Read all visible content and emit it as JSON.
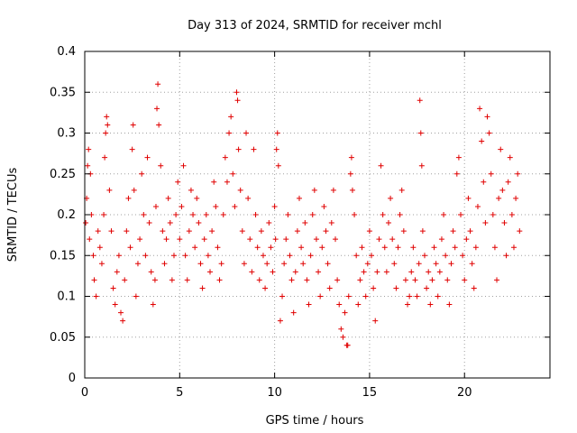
{
  "chart_data": {
    "type": "scatter",
    "title": "Day 313 of 2024, SRMTID for receiver mchl",
    "xlabel": "GPS time / hours",
    "ylabel": "SRMTID / TECUs",
    "xlim": [
      0,
      24.5
    ],
    "ylim": [
      0,
      0.4
    ],
    "xticks": [
      0,
      5,
      10,
      15,
      20
    ],
    "xtick_labels": [
      "0",
      "5",
      "10",
      "15",
      "20"
    ],
    "yticks": [
      0,
      0.05,
      0.1,
      0.15,
      0.2,
      0.25,
      0.3,
      0.35,
      0.4
    ],
    "ytick_labels": [
      "0",
      "0.05",
      "0.1",
      "0.15",
      "0.2",
      "0.25",
      "0.3",
      "0.35",
      "0.4"
    ],
    "grid": true,
    "marker": "+",
    "color": "#e00000",
    "x_data_range": [
      0,
      22.9
    ],
    "series": [
      {
        "name": "SRMTID",
        "points": [
          [
            0.05,
            0.19
          ],
          [
            0.1,
            0.22
          ],
          [
            0.15,
            0.26
          ],
          [
            0.2,
            0.28
          ],
          [
            0.25,
            0.17
          ],
          [
            0.3,
            0.25
          ],
          [
            0.35,
            0.2
          ],
          [
            0.45,
            0.15
          ],
          [
            0.5,
            0.12
          ],
          [
            0.6,
            0.1
          ],
          [
            0.7,
            0.18
          ],
          [
            0.8,
            0.16
          ],
          [
            0.9,
            0.14
          ],
          [
            1.0,
            0.2
          ],
          [
            1.05,
            0.27
          ],
          [
            1.1,
            0.3
          ],
          [
            1.15,
            0.32
          ],
          [
            1.2,
            0.31
          ],
          [
            1.3,
            0.23
          ],
          [
            1.4,
            0.18
          ],
          [
            1.5,
            0.11
          ],
          [
            1.6,
            0.09
          ],
          [
            1.7,
            0.13
          ],
          [
            1.8,
            0.15
          ],
          [
            1.9,
            0.08
          ],
          [
            2.0,
            0.07
          ],
          [
            2.1,
            0.12
          ],
          [
            2.2,
            0.18
          ],
          [
            2.3,
            0.22
          ],
          [
            2.4,
            0.16
          ],
          [
            2.5,
            0.28
          ],
          [
            2.55,
            0.31
          ],
          [
            2.6,
            0.23
          ],
          [
            2.7,
            0.1
          ],
          [
            2.8,
            0.14
          ],
          [
            2.9,
            0.17
          ],
          [
            3.0,
            0.25
          ],
          [
            3.1,
            0.2
          ],
          [
            3.2,
            0.15
          ],
          [
            3.3,
            0.27
          ],
          [
            3.4,
            0.19
          ],
          [
            3.5,
            0.13
          ],
          [
            3.6,
            0.09
          ],
          [
            3.7,
            0.12
          ],
          [
            3.75,
            0.21
          ],
          [
            3.8,
            0.33
          ],
          [
            3.85,
            0.36
          ],
          [
            3.9,
            0.31
          ],
          [
            4.0,
            0.26
          ],
          [
            4.1,
            0.18
          ],
          [
            4.2,
            0.14
          ],
          [
            4.3,
            0.17
          ],
          [
            4.4,
            0.22
          ],
          [
            4.5,
            0.19
          ],
          [
            4.6,
            0.12
          ],
          [
            4.7,
            0.15
          ],
          [
            4.8,
            0.2
          ],
          [
            4.9,
            0.24
          ],
          [
            5.0,
            0.17
          ],
          [
            5.1,
            0.21
          ],
          [
            5.2,
            0.26
          ],
          [
            5.3,
            0.15
          ],
          [
            5.4,
            0.12
          ],
          [
            5.5,
            0.18
          ],
          [
            5.6,
            0.23
          ],
          [
            5.7,
            0.2
          ],
          [
            5.8,
            0.16
          ],
          [
            5.9,
            0.22
          ],
          [
            6.0,
            0.19
          ],
          [
            6.1,
            0.14
          ],
          [
            6.2,
            0.11
          ],
          [
            6.3,
            0.17
          ],
          [
            6.4,
            0.2
          ],
          [
            6.5,
            0.15
          ],
          [
            6.6,
            0.13
          ],
          [
            6.7,
            0.18
          ],
          [
            6.8,
            0.24
          ],
          [
            6.9,
            0.21
          ],
          [
            7.0,
            0.16
          ],
          [
            7.1,
            0.12
          ],
          [
            7.2,
            0.14
          ],
          [
            7.3,
            0.2
          ],
          [
            7.4,
            0.27
          ],
          [
            7.5,
            0.24
          ],
          [
            7.6,
            0.3
          ],
          [
            7.7,
            0.32
          ],
          [
            7.8,
            0.25
          ],
          [
            7.9,
            0.21
          ],
          [
            8.0,
            0.35
          ],
          [
            8.05,
            0.34
          ],
          [
            8.1,
            0.28
          ],
          [
            8.2,
            0.23
          ],
          [
            8.3,
            0.18
          ],
          [
            8.4,
            0.14
          ],
          [
            8.5,
            0.3
          ],
          [
            8.6,
            0.22
          ],
          [
            8.7,
            0.17
          ],
          [
            8.8,
            0.13
          ],
          [
            8.9,
            0.28
          ],
          [
            9.0,
            0.2
          ],
          [
            9.1,
            0.16
          ],
          [
            9.2,
            0.12
          ],
          [
            9.3,
            0.18
          ],
          [
            9.4,
            0.15
          ],
          [
            9.5,
            0.11
          ],
          [
            9.6,
            0.14
          ],
          [
            9.7,
            0.19
          ],
          [
            9.8,
            0.16
          ],
          [
            9.9,
            0.13
          ],
          [
            10.0,
            0.21
          ],
          [
            10.05,
            0.17
          ],
          [
            10.1,
            0.28
          ],
          [
            10.15,
            0.3
          ],
          [
            10.2,
            0.26
          ],
          [
            10.3,
            0.07
          ],
          [
            10.4,
            0.1
          ],
          [
            10.5,
            0.14
          ],
          [
            10.6,
            0.17
          ],
          [
            10.7,
            0.2
          ],
          [
            10.8,
            0.15
          ],
          [
            10.9,
            0.12
          ],
          [
            11.0,
            0.08
          ],
          [
            11.1,
            0.13
          ],
          [
            11.2,
            0.18
          ],
          [
            11.3,
            0.22
          ],
          [
            11.4,
            0.16
          ],
          [
            11.5,
            0.14
          ],
          [
            11.6,
            0.19
          ],
          [
            11.7,
            0.12
          ],
          [
            11.8,
            0.09
          ],
          [
            11.9,
            0.15
          ],
          [
            12.0,
            0.2
          ],
          [
            12.1,
            0.23
          ],
          [
            12.2,
            0.17
          ],
          [
            12.3,
            0.13
          ],
          [
            12.4,
            0.1
          ],
          [
            12.5,
            0.16
          ],
          [
            12.6,
            0.21
          ],
          [
            12.7,
            0.18
          ],
          [
            12.8,
            0.14
          ],
          [
            12.9,
            0.11
          ],
          [
            13.0,
            0.19
          ],
          [
            13.1,
            0.23
          ],
          [
            13.2,
            0.17
          ],
          [
            13.3,
            0.12
          ],
          [
            13.4,
            0.09
          ],
          [
            13.5,
            0.06
          ],
          [
            13.6,
            0.05
          ],
          [
            13.7,
            0.08
          ],
          [
            13.8,
            0.04
          ],
          [
            13.85,
            0.04
          ],
          [
            13.9,
            0.1
          ],
          [
            14.0,
            0.25
          ],
          [
            14.05,
            0.27
          ],
          [
            14.1,
            0.23
          ],
          [
            14.2,
            0.2
          ],
          [
            14.3,
            0.15
          ],
          [
            14.4,
            0.09
          ],
          [
            14.5,
            0.12
          ],
          [
            14.6,
            0.16
          ],
          [
            14.7,
            0.13
          ],
          [
            14.8,
            0.1
          ],
          [
            14.9,
            0.14
          ],
          [
            15.0,
            0.18
          ],
          [
            15.1,
            0.15
          ],
          [
            15.2,
            0.11
          ],
          [
            15.3,
            0.07
          ],
          [
            15.4,
            0.13
          ],
          [
            15.5,
            0.17
          ],
          [
            15.6,
            0.26
          ],
          [
            15.7,
            0.2
          ],
          [
            15.8,
            0.16
          ],
          [
            15.9,
            0.13
          ],
          [
            16.0,
            0.19
          ],
          [
            16.1,
            0.22
          ],
          [
            16.2,
            0.17
          ],
          [
            16.3,
            0.14
          ],
          [
            16.4,
            0.11
          ],
          [
            16.5,
            0.16
          ],
          [
            16.6,
            0.2
          ],
          [
            16.7,
            0.23
          ],
          [
            16.8,
            0.18
          ],
          [
            16.9,
            0.12
          ],
          [
            17.0,
            0.09
          ],
          [
            17.1,
            0.1
          ],
          [
            17.2,
            0.13
          ],
          [
            17.3,
            0.16
          ],
          [
            17.4,
            0.12
          ],
          [
            17.5,
            0.1
          ],
          [
            17.6,
            0.14
          ],
          [
            17.65,
            0.34
          ],
          [
            17.7,
            0.3
          ],
          [
            17.75,
            0.26
          ],
          [
            17.8,
            0.18
          ],
          [
            17.9,
            0.15
          ],
          [
            18.0,
            0.11
          ],
          [
            18.1,
            0.13
          ],
          [
            18.2,
            0.09
          ],
          [
            18.3,
            0.12
          ],
          [
            18.4,
            0.16
          ],
          [
            18.5,
            0.14
          ],
          [
            18.6,
            0.1
          ],
          [
            18.7,
            0.13
          ],
          [
            18.8,
            0.17
          ],
          [
            18.9,
            0.2
          ],
          [
            19.0,
            0.15
          ],
          [
            19.1,
            0.12
          ],
          [
            19.2,
            0.09
          ],
          [
            19.3,
            0.14
          ],
          [
            19.4,
            0.18
          ],
          [
            19.5,
            0.16
          ],
          [
            19.6,
            0.25
          ],
          [
            19.7,
            0.27
          ],
          [
            19.8,
            0.2
          ],
          [
            19.9,
            0.15
          ],
          [
            20.0,
            0.12
          ],
          [
            20.1,
            0.17
          ],
          [
            20.2,
            0.22
          ],
          [
            20.3,
            0.18
          ],
          [
            20.4,
            0.14
          ],
          [
            20.5,
            0.11
          ],
          [
            20.6,
            0.16
          ],
          [
            20.7,
            0.21
          ],
          [
            20.8,
            0.33
          ],
          [
            20.9,
            0.29
          ],
          [
            21.0,
            0.24
          ],
          [
            21.1,
            0.19
          ],
          [
            21.2,
            0.32
          ],
          [
            21.3,
            0.3
          ],
          [
            21.4,
            0.25
          ],
          [
            21.5,
            0.2
          ],
          [
            21.6,
            0.16
          ],
          [
            21.7,
            0.12
          ],
          [
            21.8,
            0.22
          ],
          [
            21.9,
            0.28
          ],
          [
            22.0,
            0.23
          ],
          [
            22.1,
            0.19
          ],
          [
            22.2,
            0.15
          ],
          [
            22.3,
            0.24
          ],
          [
            22.4,
            0.27
          ],
          [
            22.5,
            0.2
          ],
          [
            22.6,
            0.16
          ],
          [
            22.7,
            0.22
          ],
          [
            22.8,
            0.25
          ],
          [
            22.9,
            0.18
          ]
        ]
      }
    ]
  }
}
